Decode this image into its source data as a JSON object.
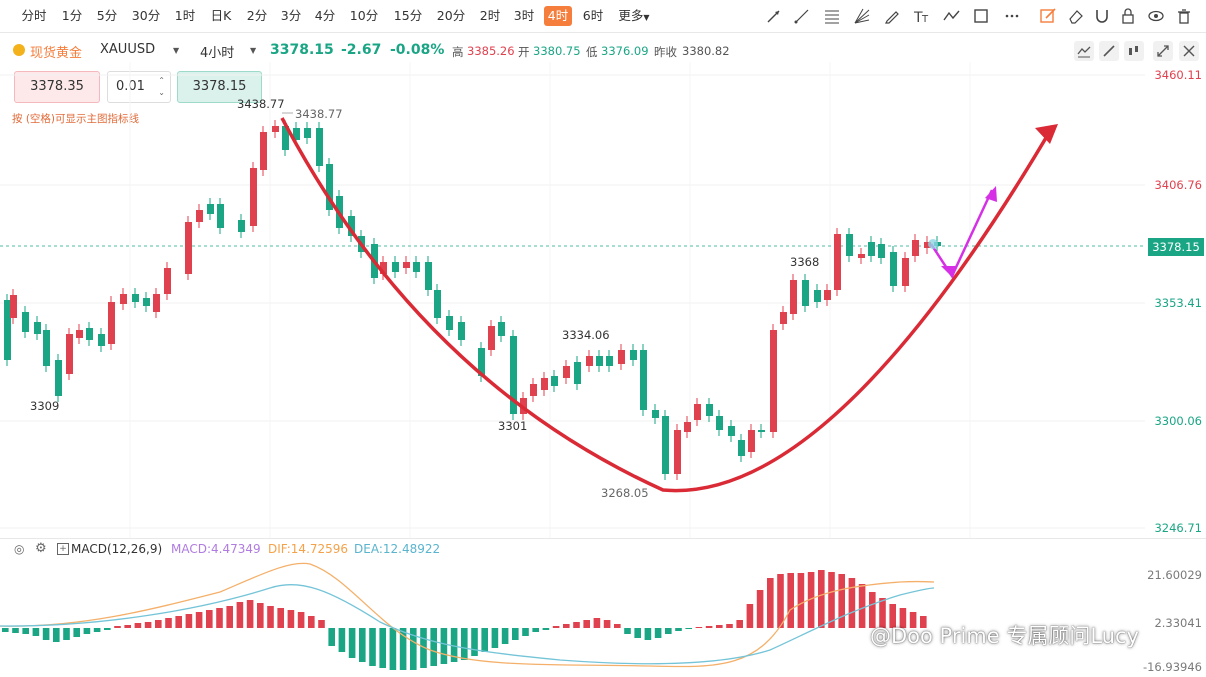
{
  "toolbar": {
    "timeframes": [
      "分时",
      "1分",
      "5分",
      "30分",
      "1时",
      "日K",
      "2分",
      "3分",
      "4分",
      "10分",
      "15分",
      "20分",
      "2时",
      "3时",
      "4时",
      "6时",
      "更多"
    ],
    "active_timeframe": "4时"
  },
  "symbol": {
    "name": "现货黄金",
    "code": "XAUUSD",
    "period": "4小时",
    "price": "3378.15",
    "change": "-2.67",
    "change_pct": "-0.08%",
    "high_label": "高",
    "high": "3385.26",
    "open_label": "开",
    "open": "3380.75",
    "low_label": "低",
    "low": "3376.09",
    "prev_close_label": "昨收",
    "prev_close": "3380.82"
  },
  "order": {
    "sell_price": "3378.35",
    "lot": "0.01",
    "buy_price": "3378.15",
    "hint": "按 (空格)可显示主图指标线"
  },
  "chart": {
    "y_axis_labels": [
      "3460.11",
      "3406.76",
      "3353.41",
      "3300.06",
      "3246.71"
    ],
    "current_price_tag": "3378.15",
    "annotations": [
      "3438.77",
      "3438.77",
      "3309",
      "3301",
      "3334.06",
      "3268.05",
      "3368"
    ]
  },
  "macd": {
    "label": "MACD(12,26,9)",
    "macd_value": "MACD:4.47349",
    "dif_value": "DIF:14.72596",
    "dea_value": "DEA:12.48922",
    "y_axis_labels": [
      "21.60029",
      "2.33041",
      "-16.93946"
    ]
  },
  "colors": {
    "up": "#e0414e",
    "down": "#1aa585",
    "accent": "#f57e3c",
    "dif": "#f4b06a",
    "dea": "#74c4d8",
    "curve": "#d92a35",
    "arrow": "#d630e6"
  },
  "watermark": "@Doo Prime 专属顾问Lucy"
}
